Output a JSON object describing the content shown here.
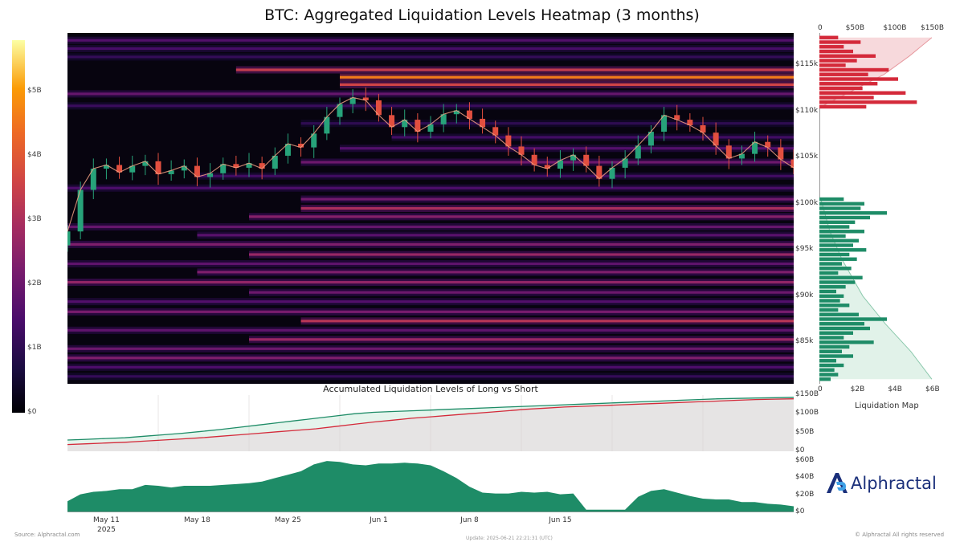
{
  "chart_data": {
    "title": "BTC: Aggregated Liquidation Levels Heatmap (3 months)",
    "type": "heatmap",
    "colorbar": {
      "ticks": [
        "$5B",
        "$4B",
        "$3B",
        "$2B",
        "$1B",
        "$0"
      ],
      "range": [
        0,
        5.8
      ]
    },
    "heatmap": {
      "y_ticks": [
        "$115k",
        "$110k",
        "$105k",
        "$100k",
        "$95k",
        "$90k",
        "$85k"
      ],
      "y_tick_values": [
        115000,
        110000,
        105000,
        100000,
        95000,
        90000,
        85000
      ],
      "ylim": [
        80500,
        118500
      ],
      "days": 57,
      "price_close": [
        97000,
        101500,
        103800,
        104200,
        103400,
        104100,
        104600,
        103200,
        103600,
        104100,
        102900,
        103300,
        104300,
        103900,
        104400,
        103800,
        105200,
        106500,
        106100,
        107600,
        109400,
        110800,
        111500,
        111200,
        109600,
        108300,
        109100,
        107800,
        108600,
        109700,
        110100,
        109200,
        108300,
        107400,
        106200,
        105300,
        104200,
        103800,
        104700,
        105300,
        104100,
        102700,
        103900,
        104900,
        106300,
        107800,
        109600,
        109100,
        108500,
        107700,
        106300,
        104900,
        105400,
        106700,
        106100,
        104800,
        103900
      ],
      "bands": [
        {
          "p": 117700,
          "v": 1.6,
          "s": 0
        },
        {
          "p": 116800,
          "v": 1.4,
          "s": 0
        },
        {
          "p": 115900,
          "v": 1.1,
          "s": 0
        },
        {
          "p": 114500,
          "v": 3.4,
          "s": 13
        },
        {
          "p": 113700,
          "v": 4.6,
          "s": 21
        },
        {
          "p": 112900,
          "v": 3.6,
          "s": 21
        },
        {
          "p": 111900,
          "v": 1.9,
          "s": 0
        },
        {
          "p": 110600,
          "v": 1.2,
          "s": 0
        },
        {
          "p": 108700,
          "v": 1.0,
          "s": 18
        },
        {
          "p": 107200,
          "v": 1.3,
          "s": 25
        },
        {
          "p": 106000,
          "v": 1.6,
          "s": 21
        },
        {
          "p": 104500,
          "v": 2.0,
          "s": 18
        },
        {
          "p": 103000,
          "v": 1.3,
          "s": 10
        },
        {
          "p": 101700,
          "v": 1.5,
          "s": 0
        },
        {
          "p": 100500,
          "v": 2.1,
          "s": 18
        },
        {
          "p": 99500,
          "v": 3.0,
          "s": 18
        },
        {
          "p": 98600,
          "v": 2.4,
          "s": 14
        },
        {
          "p": 97500,
          "v": 1.9,
          "s": 0
        },
        {
          "p": 96600,
          "v": 1.7,
          "s": 10
        },
        {
          "p": 95600,
          "v": 2.3,
          "s": 0
        },
        {
          "p": 94500,
          "v": 2.7,
          "s": 14
        },
        {
          "p": 93500,
          "v": 1.8,
          "s": 0
        },
        {
          "p": 92600,
          "v": 2.3,
          "s": 10
        },
        {
          "p": 91500,
          "v": 2.6,
          "s": 0
        },
        {
          "p": 90400,
          "v": 2.0,
          "s": 14
        },
        {
          "p": 89400,
          "v": 1.6,
          "s": 0
        },
        {
          "p": 88300,
          "v": 2.2,
          "s": 0
        },
        {
          "p": 87300,
          "v": 3.2,
          "s": 18
        },
        {
          "p": 86300,
          "v": 1.8,
          "s": 0
        },
        {
          "p": 85300,
          "v": 2.7,
          "s": 14
        },
        {
          "p": 84300,
          "v": 2.0,
          "s": 0
        },
        {
          "p": 83300,
          "v": 2.3,
          "s": 0
        },
        {
          "p": 82300,
          "v": 1.5,
          "s": 0
        },
        {
          "p": 81300,
          "v": 1.1,
          "s": 0
        }
      ]
    },
    "liquidation_map": {
      "title": "Liquidation Map",
      "top_axis_ticks": [
        "0",
        "$50B",
        "$100B",
        "$150B"
      ],
      "bottom_axis_ticks": [
        "0",
        "$2B",
        "$4B",
        "$6B"
      ],
      "bottom_axis_values": [
        0,
        2,
        4,
        6
      ],
      "top_axis_values": [
        0,
        50,
        100,
        150
      ],
      "shorts": [
        {
          "p": 118000,
          "v": 1.0
        },
        {
          "p": 117500,
          "v": 2.2
        },
        {
          "p": 117000,
          "v": 1.3
        },
        {
          "p": 116500,
          "v": 1.8
        },
        {
          "p": 116000,
          "v": 3.0
        },
        {
          "p": 115500,
          "v": 2.0
        },
        {
          "p": 115000,
          "v": 1.4
        },
        {
          "p": 114500,
          "v": 3.7
        },
        {
          "p": 114000,
          "v": 2.6
        },
        {
          "p": 113500,
          "v": 4.2
        },
        {
          "p": 113000,
          "v": 3.1
        },
        {
          "p": 112500,
          "v": 2.3
        },
        {
          "p": 112000,
          "v": 4.6
        },
        {
          "p": 111500,
          "v": 2.9
        },
        {
          "p": 111000,
          "v": 5.2
        },
        {
          "p": 110500,
          "v": 2.5
        }
      ],
      "shorts_cumulative": [
        {
          "p": 118000,
          "v": 150
        },
        {
          "p": 116000,
          "v": 120
        },
        {
          "p": 114000,
          "v": 86
        },
        {
          "p": 112000,
          "v": 38
        },
        {
          "p": 110500,
          "v": 2
        }
      ],
      "longs": [
        {
          "p": 100500,
          "v": 1.3
        },
        {
          "p": 100000,
          "v": 2.4
        },
        {
          "p": 99500,
          "v": 2.2
        },
        {
          "p": 99000,
          "v": 3.6
        },
        {
          "p": 98500,
          "v": 2.7
        },
        {
          "p": 98000,
          "v": 1.9
        },
        {
          "p": 97500,
          "v": 1.6
        },
        {
          "p": 97000,
          "v": 2.4
        },
        {
          "p": 96500,
          "v": 1.4
        },
        {
          "p": 96000,
          "v": 2.1
        },
        {
          "p": 95500,
          "v": 1.8
        },
        {
          "p": 95000,
          "v": 2.5
        },
        {
          "p": 94500,
          "v": 1.6
        },
        {
          "p": 94000,
          "v": 2.0
        },
        {
          "p": 93500,
          "v": 1.2
        },
        {
          "p": 93000,
          "v": 1.7
        },
        {
          "p": 92500,
          "v": 1.0
        },
        {
          "p": 92000,
          "v": 2.3
        },
        {
          "p": 91500,
          "v": 1.9
        },
        {
          "p": 91000,
          "v": 1.4
        },
        {
          "p": 90500,
          "v": 0.9
        },
        {
          "p": 90000,
          "v": 1.3
        },
        {
          "p": 89500,
          "v": 1.1
        },
        {
          "p": 89000,
          "v": 1.6
        },
        {
          "p": 88500,
          "v": 1.0
        },
        {
          "p": 88000,
          "v": 2.1
        },
        {
          "p": 87500,
          "v": 3.6
        },
        {
          "p": 87000,
          "v": 2.4
        },
        {
          "p": 86500,
          "v": 2.7
        },
        {
          "p": 86000,
          "v": 1.8
        },
        {
          "p": 85500,
          "v": 1.3
        },
        {
          "p": 85000,
          "v": 2.9
        },
        {
          "p": 84500,
          "v": 1.6
        },
        {
          "p": 84000,
          "v": 1.2
        },
        {
          "p": 83500,
          "v": 1.8
        },
        {
          "p": 83000,
          "v": 0.9
        },
        {
          "p": 82500,
          "v": 1.3
        },
        {
          "p": 82000,
          "v": 0.8
        },
        {
          "p": 81500,
          "v": 1.0
        },
        {
          "p": 81000,
          "v": 0.6
        }
      ],
      "longs_cumulative": [
        {
          "p": 100500,
          "v": 2
        },
        {
          "p": 97000,
          "v": 14
        },
        {
          "p": 94000,
          "v": 30
        },
        {
          "p": 90000,
          "v": 58
        },
        {
          "p": 87000,
          "v": 88
        },
        {
          "p": 84000,
          "v": 122
        },
        {
          "p": 81000,
          "v": 150
        }
      ]
    },
    "accumulated": {
      "title": "Accumulated Liquidation Levels of Long vs Short",
      "y_ticks": [
        "$150B",
        "$100B",
        "$50B",
        "$0"
      ],
      "y_tick_values": [
        150,
        100,
        50,
        0
      ],
      "ylim": [
        0,
        150
      ],
      "long": [
        30,
        32,
        34,
        36,
        40,
        44,
        48,
        53,
        58,
        64,
        70,
        76,
        82,
        88,
        94,
        100,
        104,
        106,
        108,
        110,
        112,
        114,
        116,
        118,
        120,
        122,
        124,
        126,
        128,
        130,
        132,
        134,
        136,
        138,
        140,
        141,
        142,
        143,
        144
      ],
      "short": [
        18,
        20,
        22,
        24,
        27,
        30,
        33,
        36,
        40,
        44,
        48,
        52,
        56,
        60,
        66,
        72,
        78,
        83,
        88,
        92,
        96,
        100,
        104,
        108,
        112,
        115,
        118,
        120,
        122,
        124,
        126,
        128,
        130,
        132,
        134,
        136,
        138,
        139,
        140
      ]
    },
    "delta": {
      "y_ticks": [
        "$60B",
        "$40B",
        "$20B",
        "$0"
      ],
      "y_tick_values": [
        60,
        40,
        20,
        0
      ],
      "ylim": [
        0,
        62
      ],
      "values": [
        13,
        21,
        24,
        25,
        27,
        27,
        32,
        31,
        29,
        31,
        31,
        31,
        32,
        33,
        34,
        36,
        40,
        44,
        48,
        56,
        60,
        59,
        56,
        55,
        57,
        57,
        58,
        57,
        55,
        48,
        40,
        30,
        23,
        22,
        22,
        24,
        23,
        24,
        21,
        22,
        3,
        3,
        3,
        3,
        18,
        25,
        27,
        23,
        19,
        16,
        15,
        15,
        12,
        12,
        10,
        9,
        7
      ]
    },
    "x_ticks": [
      {
        "label": "May 11",
        "sub": "2025",
        "day": 3
      },
      {
        "label": "May 18",
        "sub": "",
        "day": 10
      },
      {
        "label": "May 25",
        "sub": "",
        "day": 17
      },
      {
        "label": "Jun 1",
        "sub": "",
        "day": 24
      },
      {
        "label": "Jun 8",
        "sub": "",
        "day": 31
      },
      {
        "label": "Jun 15",
        "sub": "",
        "day": 38
      }
    ]
  },
  "footer": {
    "source": "Source: Alphractal.com",
    "update": "Update: 2025-06-21 22:21:31 (UTC)",
    "rights": "© Alphractal All rights reserved"
  },
  "brand": {
    "name": "Alphractal",
    "color": "#1a2f7a"
  },
  "colors": {
    "long": "#1e8c67",
    "short": "#d42a3a",
    "long_fill": "#e4f4ec",
    "short_fill": "#f7d9dc",
    "accum_fill": "#e6e4e4"
  }
}
